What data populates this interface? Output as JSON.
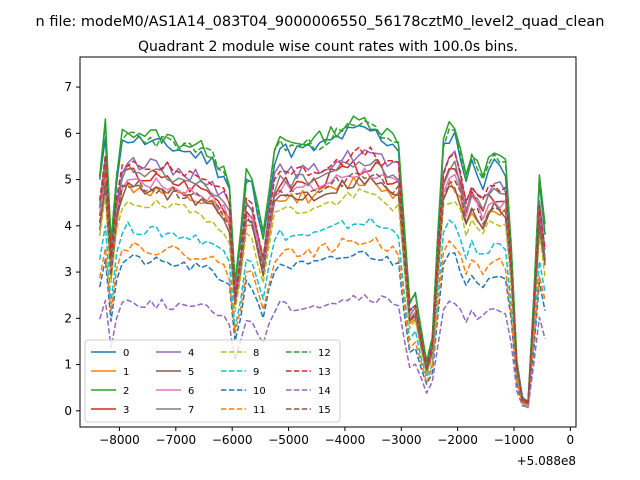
{
  "chart_data": {
    "type": "line",
    "suptitle": "n file: modeM0/AS1A14_083T04_9000006550_56178cztM0_level2_quad_clean",
    "title": "Quadrant 2 module wise count rates with 100.0s bins.",
    "xlabel": "",
    "ylabel": "",
    "x_offset_label": "+5.088e8",
    "xlim": [
      -8700,
      100
    ],
    "ylim": [
      -0.35,
      7.65
    ],
    "xticks": [
      -8000,
      -7000,
      -6000,
      -5000,
      -4000,
      -3000,
      -2000,
      -1000,
      0
    ],
    "xtick_labels": [
      "−8000",
      "−7000",
      "−6000",
      "−5000",
      "−4000",
      "−3000",
      "−2000",
      "−1000",
      "0"
    ],
    "yticks": [
      0,
      1,
      2,
      3,
      4,
      5,
      6,
      7
    ],
    "ytick_labels": [
      "0",
      "1",
      "2",
      "3",
      "4",
      "5",
      "6",
      "7"
    ],
    "grid": false,
    "legend_position": "lower-left",
    "legend_columns": 4,
    "x_grid_start": -8350,
    "x_grid_step": 100,
    "gaps": [
      [
        -4200,
        -4200
      ]
    ],
    "profile_anchors": [
      [
        -8350,
        0.8
      ],
      [
        -8250,
        0.98
      ],
      [
        -8200,
        0.82
      ],
      [
        -8150,
        0.58
      ],
      [
        -8100,
        0.72
      ],
      [
        -8000,
        0.92
      ],
      [
        -7900,
        0.97
      ],
      [
        -7500,
        0.95
      ],
      [
        -7000,
        0.93
      ],
      [
        -6500,
        0.9
      ],
      [
        -6300,
        0.88
      ],
      [
        -6200,
        0.82
      ],
      [
        -6100,
        0.86
      ],
      [
        -6000,
        0.72
      ],
      [
        -5950,
        0.45
      ],
      [
        -5900,
        0.3
      ],
      [
        -5850,
        0.6
      ],
      [
        -5800,
        0.82
      ],
      [
        -5650,
        0.8
      ],
      [
        -5550,
        0.7
      ],
      [
        -5450,
        0.6
      ],
      [
        -5350,
        0.75
      ],
      [
        -5300,
        0.85
      ],
      [
        -5200,
        0.94
      ],
      [
        -5000,
        0.92
      ],
      [
        -4500,
        0.93
      ],
      [
        -4000,
        0.98
      ],
      [
        -3600,
        1.0
      ],
      [
        -3200,
        0.95
      ],
      [
        -3000,
        0.93
      ],
      [
        -2900,
        0.36
      ],
      [
        -2800,
        0.4
      ],
      [
        -2700,
        0.42
      ],
      [
        -2600,
        0.14
      ],
      [
        -2500,
        0.2
      ],
      [
        -2400,
        0.3
      ],
      [
        -2300,
        0.9
      ],
      [
        -2100,
        1.0
      ],
      [
        -2000,
        0.95
      ],
      [
        -1850,
        0.82
      ],
      [
        -1700,
        0.9
      ],
      [
        -1600,
        0.78
      ],
      [
        -1400,
        0.88
      ],
      [
        -1100,
        0.85
      ],
      [
        -1000,
        0.3
      ],
      [
        -900,
        0.05
      ],
      [
        -800,
        0.03
      ],
      [
        -700,
        0.03
      ],
      [
        -600,
        0.75
      ],
      [
        -500,
        0.85
      ],
      [
        -400,
        0.4
      ]
    ],
    "series": [
      {
        "name": "0",
        "color": "#1f77b4",
        "dash": "solid",
        "level": 6.1,
        "noise": 0.18,
        "seed": 11
      },
      {
        "name": "1",
        "color": "#ff7f0e",
        "dash": "solid",
        "level": 5.0,
        "noise": 0.16,
        "seed": 12
      },
      {
        "name": "2",
        "color": "#2ca02c",
        "dash": "solid",
        "level": 6.3,
        "noise": 0.18,
        "seed": 13
      },
      {
        "name": "3",
        "color": "#d62728",
        "dash": "solid",
        "level": 5.3,
        "noise": 0.18,
        "seed": 14
      },
      {
        "name": "4",
        "color": "#9467bd",
        "dash": "solid",
        "level": 5.6,
        "noise": 0.16,
        "seed": 15
      },
      {
        "name": "5",
        "color": "#8c564b",
        "dash": "solid",
        "level": 5.0,
        "noise": 0.15,
        "seed": 16
      },
      {
        "name": "6",
        "color": "#e377c2",
        "dash": "solid",
        "level": 5.2,
        "noise": 0.15,
        "seed": 17
      },
      {
        "name": "7",
        "color": "#7f7f7f",
        "dash": "solid",
        "level": 5.4,
        "noise": 0.15,
        "seed": 18
      },
      {
        "name": "8",
        "color": "#bcbd22",
        "dash": "dashed",
        "level": 4.7,
        "noise": 0.14,
        "seed": 19
      },
      {
        "name": "9",
        "color": "#17becf",
        "dash": "dashed",
        "level": 4.1,
        "noise": 0.13,
        "seed": 20
      },
      {
        "name": "10",
        "color": "#1f77b4",
        "dash": "dashed",
        "level": 3.4,
        "noise": 0.12,
        "seed": 21
      },
      {
        "name": "11",
        "color": "#ff7f0e",
        "dash": "dashed",
        "level": 3.7,
        "noise": 0.13,
        "seed": 22
      },
      {
        "name": "12",
        "color": "#2ca02c",
        "dash": "dashed",
        "level": 6.2,
        "noise": 0.16,
        "seed": 23
      },
      {
        "name": "13",
        "color": "#d62728",
        "dash": "dashed",
        "level": 5.6,
        "noise": 0.15,
        "seed": 24
      },
      {
        "name": "14",
        "color": "#9467bd",
        "dash": "dashed",
        "level": 2.45,
        "noise": 0.12,
        "seed": 25
      },
      {
        "name": "15",
        "color": "#8c564b",
        "dash": "dashed",
        "level": 5.1,
        "noise": 0.14,
        "seed": 26
      }
    ]
  }
}
